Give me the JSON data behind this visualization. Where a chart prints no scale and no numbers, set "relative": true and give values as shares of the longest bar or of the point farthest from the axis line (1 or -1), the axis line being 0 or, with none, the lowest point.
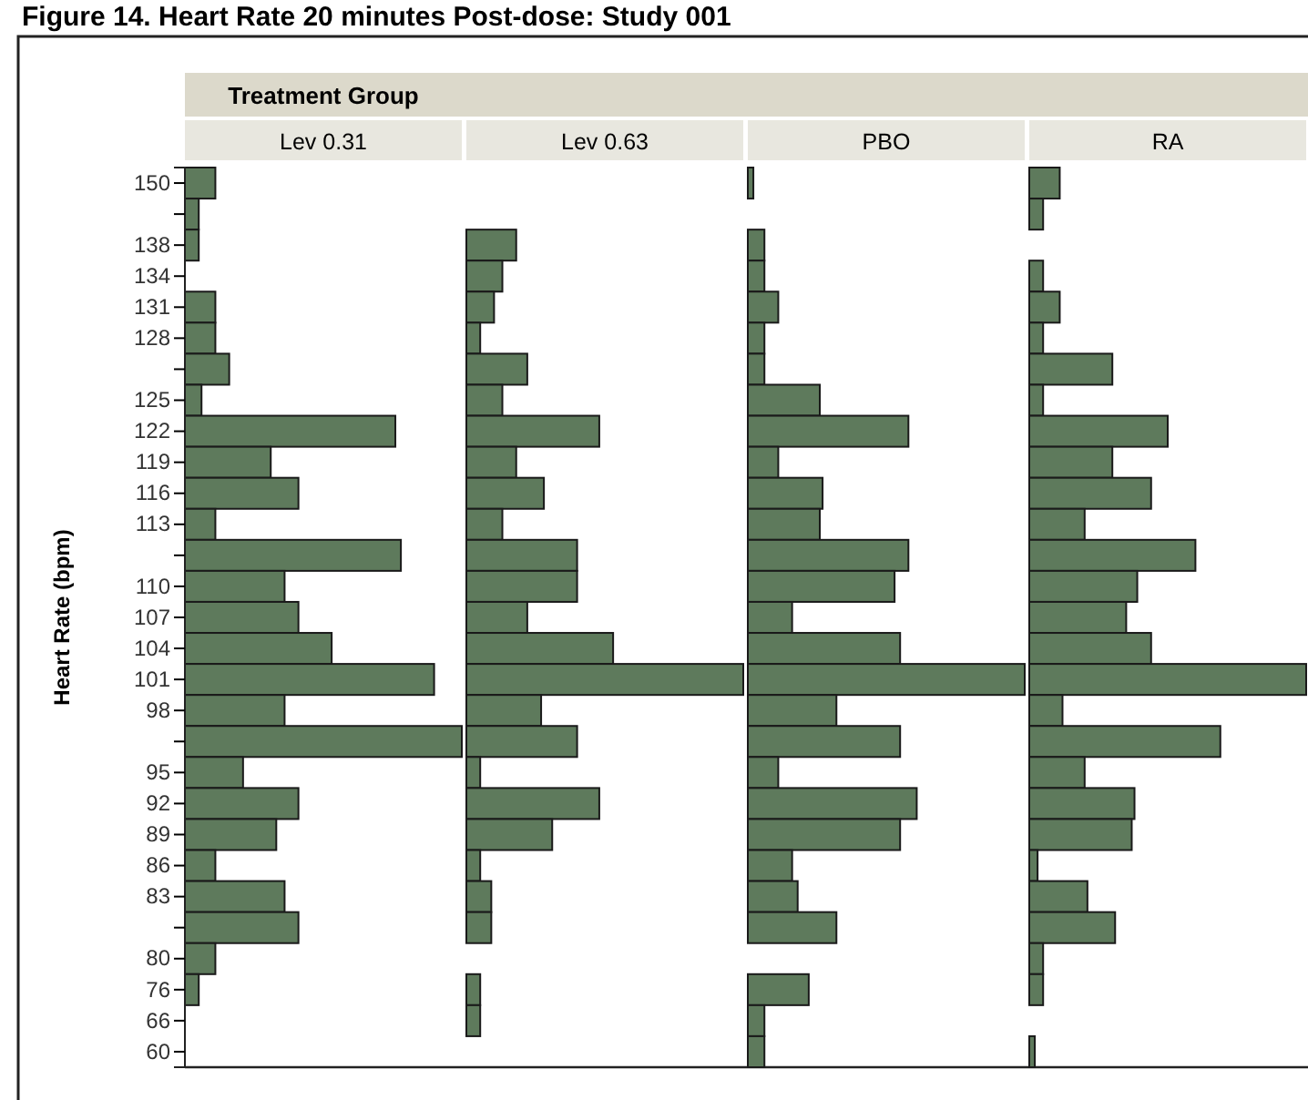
{
  "chart_data": [
    {
      "type": "bar",
      "orientation": "horizontal",
      "relative": true,
      "title": "Figure 14. Heart Rate 20 minutes Post-dose: Study 001",
      "subtitle": "Treatment Group",
      "xlabel": "Lev 0.31",
      "ylabel": "Heart Rate (bpm)",
      "tick_labels": "y",
      "color": "#5e7a5c",
      "categories": [
        "150",
        null,
        "138",
        "134",
        "131",
        "128",
        null,
        "125",
        "122",
        "119",
        "116",
        "113",
        null,
        "110",
        "107",
        "104",
        "101",
        "98",
        null,
        "95",
        "92",
        "89",
        "86",
        "83",
        null,
        "80",
        "76",
        "66",
        "60"
      ],
      "values": [
        0.11,
        0.05,
        0.05,
        0,
        0.11,
        0.11,
        0.16,
        0.06,
        0.76,
        0.31,
        0.41,
        0.11,
        0.78,
        0.36,
        0.41,
        0.53,
        0.9,
        0.36,
        1,
        0.21,
        0.41,
        0.33,
        0.11,
        0.36,
        0.41,
        0.11,
        0.05,
        0,
        0
      ]
    },
    {
      "type": "bar",
      "orientation": "horizontal",
      "relative": true,
      "xlabel": "Lev 0.63",
      "tick_labels": false,
      "color": "#5e7a5c",
      "categories": [
        "150",
        null,
        "138",
        "134",
        "131",
        "128",
        null,
        "125",
        "122",
        "119",
        "116",
        "113",
        null,
        "110",
        "107",
        "104",
        "101",
        "98",
        null,
        "95",
        "92",
        "89",
        "86",
        "83",
        null,
        "80",
        "76",
        "66",
        "60"
      ],
      "values": [
        0,
        0,
        0.18,
        0.13,
        0.1,
        0.05,
        0.22,
        0.13,
        0.48,
        0.18,
        0.28,
        0.13,
        0.4,
        0.4,
        0.22,
        0.53,
        1,
        0.27,
        0.4,
        0.05,
        0.48,
        0.31,
        0.05,
        0.09,
        0.09,
        0,
        0.05,
        0.05,
        0
      ]
    },
    {
      "type": "bar",
      "orientation": "horizontal",
      "relative": true,
      "xlabel": "PBO",
      "tick_labels": false,
      "color": "#5e7a5c",
      "categories": [
        "150",
        null,
        "138",
        "134",
        "131",
        "128",
        null,
        "125",
        "122",
        "119",
        "116",
        "113",
        null,
        "110",
        "107",
        "104",
        "101",
        "98",
        null,
        "95",
        "92",
        "89",
        "86",
        "83",
        null,
        "80",
        "76",
        "66",
        "60"
      ],
      "values": [
        0.02,
        0,
        0.06,
        0.06,
        0.11,
        0.06,
        0.06,
        0.26,
        0.58,
        0.11,
        0.27,
        0.26,
        0.58,
        0.53,
        0.16,
        0.55,
        1,
        0.32,
        0.55,
        0.11,
        0.61,
        0.55,
        0.16,
        0.18,
        0.32,
        0,
        0.22,
        0.06,
        0.06
      ]
    },
    {
      "type": "bar",
      "orientation": "horizontal",
      "relative": true,
      "xlabel": "RA",
      "tick_labels": false,
      "color": "#5e7a5c",
      "categories": [
        "150",
        null,
        "138",
        "134",
        "131",
        "128",
        null,
        "125",
        "122",
        "119",
        "116",
        "113",
        null,
        "110",
        "107",
        "104",
        "101",
        "98",
        null,
        "95",
        "92",
        "89",
        "86",
        "83",
        null,
        "80",
        "76",
        "66",
        "60"
      ],
      "values": [
        0.11,
        0.05,
        0,
        0.05,
        0.11,
        0.05,
        0.3,
        0.05,
        0.5,
        0.3,
        0.44,
        0.2,
        0.6,
        0.39,
        0.35,
        0.44,
        1,
        0.12,
        0.69,
        0.2,
        0.38,
        0.37,
        0.03,
        0.21,
        0.31,
        0.05,
        0.05,
        0,
        0.02
      ]
    }
  ]
}
